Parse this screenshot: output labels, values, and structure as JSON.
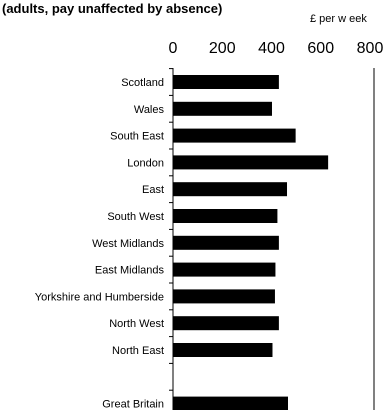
{
  "chart_data": {
    "type": "bar",
    "orientation": "horizontal",
    "subtitle": "(adults, pay unaffected by absence)",
    "unit_label": "£ per w eek",
    "xlim": [
      0,
      800
    ],
    "x_ticks": [
      "0",
      "200",
      "400",
      "600",
      "800"
    ],
    "grid": false,
    "categories": [
      "Scotland",
      "Wales",
      "South East",
      "London",
      "East",
      "South West",
      "West Midlands",
      "East Midlands",
      "Yorkshire and Humberside",
      "North West",
      "North East",
      "",
      "Great Britain"
    ],
    "values": [
      430,
      402,
      498,
      630,
      463,
      424,
      430,
      416,
      414,
      430,
      404,
      null,
      467
    ],
    "bar_color": "#000000"
  }
}
